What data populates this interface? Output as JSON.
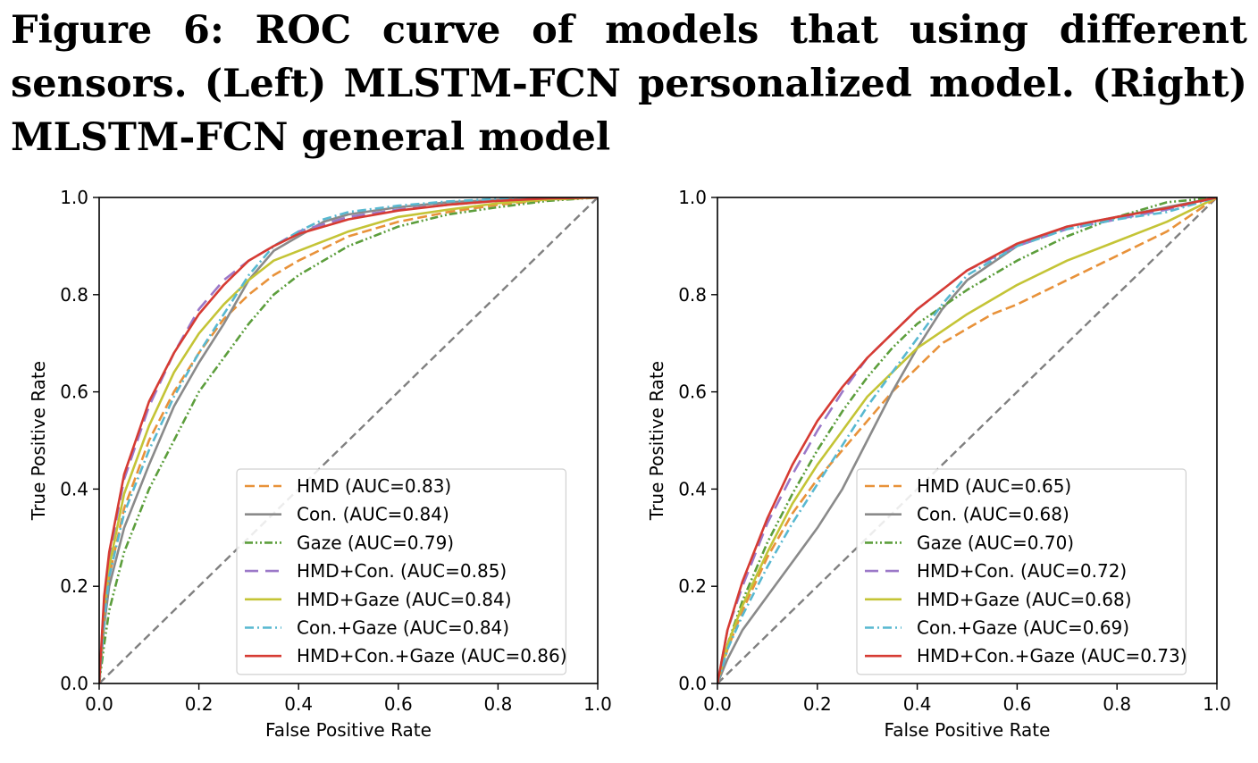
{
  "caption": "Figure 6: ROC curve of models that using different sensors. (Left) MLSTM-FCN personalized model. (Right) MLSTM-FCN general model",
  "chart_data": [
    {
      "type": "line",
      "panel": "left",
      "xlabel": "False Positive Rate",
      "ylabel": "True Positive Rate",
      "xlim": [
        0,
        1
      ],
      "ylim": [
        0,
        1
      ],
      "xticks": [
        "0.0",
        "0.2",
        "0.4",
        "0.6",
        "0.8",
        "1.0"
      ],
      "yticks": [
        "0.0",
        "0.2",
        "0.4",
        "0.6",
        "0.8",
        "1.0"
      ],
      "grid": false,
      "legend_position": "lower-right",
      "diagonal": true,
      "series": [
        {
          "name": "HMD (AUC=0.83)",
          "color": "#e8923a",
          "dash": "dash",
          "x": [
            0,
            0.01,
            0.02,
            0.05,
            0.1,
            0.15,
            0.2,
            0.25,
            0.3,
            0.35,
            0.4,
            0.5,
            0.6,
            0.7,
            0.8,
            0.9,
            1.0
          ],
          "y": [
            0,
            0.14,
            0.22,
            0.36,
            0.5,
            0.6,
            0.68,
            0.75,
            0.8,
            0.84,
            0.87,
            0.92,
            0.95,
            0.97,
            0.985,
            0.995,
            1.0
          ]
        },
        {
          "name": "Con. (AUC=0.84)",
          "color": "#8a8a8a",
          "dash": "solid",
          "x": [
            0,
            0.01,
            0.02,
            0.05,
            0.1,
            0.15,
            0.2,
            0.25,
            0.3,
            0.35,
            0.4,
            0.45,
            0.5,
            0.6,
            0.7,
            0.8,
            0.9,
            1.0
          ],
          "y": [
            0,
            0.12,
            0.2,
            0.32,
            0.45,
            0.57,
            0.66,
            0.74,
            0.83,
            0.89,
            0.92,
            0.95,
            0.965,
            0.98,
            0.99,
            0.995,
            0.998,
            1.0
          ]
        },
        {
          "name": "Gaze (AUC=0.79)",
          "color": "#5c9e3c",
          "dash": "dashdotdot",
          "x": [
            0,
            0.01,
            0.02,
            0.05,
            0.1,
            0.15,
            0.2,
            0.25,
            0.3,
            0.35,
            0.4,
            0.5,
            0.6,
            0.7,
            0.8,
            0.9,
            1.0
          ],
          "y": [
            0,
            0.08,
            0.15,
            0.27,
            0.4,
            0.5,
            0.6,
            0.67,
            0.74,
            0.8,
            0.84,
            0.9,
            0.94,
            0.965,
            0.98,
            0.993,
            1.0
          ]
        },
        {
          "name": "HMD+Con. (AUC=0.85)",
          "color": "#9b78c8",
          "dash": "longdash",
          "x": [
            0,
            0.01,
            0.02,
            0.05,
            0.1,
            0.15,
            0.2,
            0.25,
            0.3,
            0.35,
            0.4,
            0.5,
            0.6,
            0.7,
            0.8,
            0.9,
            1.0
          ],
          "y": [
            0,
            0.17,
            0.26,
            0.42,
            0.57,
            0.68,
            0.77,
            0.83,
            0.87,
            0.9,
            0.93,
            0.96,
            0.975,
            0.985,
            0.993,
            0.998,
            1.0
          ]
        },
        {
          "name": "HMD+Gaze (AUC=0.84)",
          "color": "#c4c436",
          "dash": "solid",
          "x": [
            0,
            0.01,
            0.02,
            0.05,
            0.1,
            0.15,
            0.2,
            0.25,
            0.3,
            0.35,
            0.4,
            0.5,
            0.6,
            0.7,
            0.8,
            0.9,
            1.0
          ],
          "y": [
            0,
            0.15,
            0.24,
            0.39,
            0.53,
            0.64,
            0.72,
            0.78,
            0.83,
            0.87,
            0.89,
            0.93,
            0.96,
            0.975,
            0.988,
            0.996,
            1.0
          ]
        },
        {
          "name": "Con.+Gaze (AUC=0.84)",
          "color": "#58b8d0",
          "dash": "dashdot",
          "x": [
            0,
            0.01,
            0.02,
            0.05,
            0.1,
            0.15,
            0.2,
            0.25,
            0.3,
            0.35,
            0.4,
            0.45,
            0.5,
            0.6,
            0.7,
            0.8,
            0.9,
            1.0
          ],
          "y": [
            0,
            0.13,
            0.22,
            0.35,
            0.48,
            0.59,
            0.68,
            0.76,
            0.84,
            0.9,
            0.93,
            0.955,
            0.97,
            0.983,
            0.992,
            0.997,
            0.999,
            1.0
          ]
        },
        {
          "name": "HMD+Con.+Gaze (AUC=0.86)",
          "color": "#d63b33",
          "dash": "solid",
          "x": [
            0,
            0.01,
            0.02,
            0.05,
            0.1,
            0.15,
            0.2,
            0.25,
            0.3,
            0.35,
            0.4,
            0.5,
            0.6,
            0.7,
            0.8,
            0.9,
            1.0
          ],
          "y": [
            0,
            0.18,
            0.27,
            0.43,
            0.58,
            0.68,
            0.76,
            0.82,
            0.87,
            0.9,
            0.925,
            0.955,
            0.973,
            0.985,
            0.993,
            0.998,
            1.0
          ]
        }
      ]
    },
    {
      "type": "line",
      "panel": "right",
      "xlabel": "False Positive Rate",
      "ylabel": "True Positive Rate",
      "xlim": [
        0,
        1
      ],
      "ylim": [
        0,
        1
      ],
      "xticks": [
        "0.0",
        "0.2",
        "0.4",
        "0.6",
        "0.8",
        "1.0"
      ],
      "yticks": [
        "0.0",
        "0.2",
        "0.4",
        "0.6",
        "0.8",
        "1.0"
      ],
      "grid": false,
      "legend_position": "lower-right",
      "diagonal": true,
      "series": [
        {
          "name": "HMD (AUC=0.65)",
          "color": "#e8923a",
          "dash": "dash",
          "x": [
            0,
            0.02,
            0.05,
            0.1,
            0.15,
            0.2,
            0.25,
            0.3,
            0.35,
            0.4,
            0.45,
            0.5,
            0.55,
            0.6,
            0.7,
            0.8,
            0.9,
            1.0
          ],
          "y": [
            0,
            0.07,
            0.15,
            0.26,
            0.35,
            0.42,
            0.48,
            0.54,
            0.6,
            0.65,
            0.7,
            0.73,
            0.76,
            0.78,
            0.83,
            0.88,
            0.93,
            1.0
          ]
        },
        {
          "name": "Con. (AUC=0.68)",
          "color": "#8a8a8a",
          "dash": "solid",
          "x": [
            0,
            0.02,
            0.05,
            0.1,
            0.15,
            0.2,
            0.25,
            0.3,
            0.35,
            0.4,
            0.45,
            0.5,
            0.6,
            0.7,
            0.8,
            0.9,
            1.0
          ],
          "y": [
            0,
            0.05,
            0.11,
            0.18,
            0.25,
            0.32,
            0.4,
            0.5,
            0.6,
            0.69,
            0.77,
            0.83,
            0.9,
            0.94,
            0.96,
            0.98,
            1.0
          ]
        },
        {
          "name": "Gaze (AUC=0.70)",
          "color": "#5c9e3c",
          "dash": "dashdotdot",
          "x": [
            0,
            0.02,
            0.05,
            0.1,
            0.15,
            0.2,
            0.25,
            0.3,
            0.35,
            0.4,
            0.5,
            0.6,
            0.7,
            0.8,
            0.9,
            1.0
          ],
          "y": [
            0,
            0.08,
            0.17,
            0.29,
            0.39,
            0.48,
            0.56,
            0.63,
            0.69,
            0.74,
            0.81,
            0.87,
            0.92,
            0.96,
            0.99,
            1.0
          ]
        },
        {
          "name": "HMD+Con. (AUC=0.72)",
          "color": "#9b78c8",
          "dash": "longdash",
          "x": [
            0,
            0.02,
            0.05,
            0.1,
            0.15,
            0.2,
            0.25,
            0.3,
            0.35,
            0.4,
            0.5,
            0.6,
            0.7,
            0.8,
            0.9,
            1.0
          ],
          "y": [
            0,
            0.11,
            0.2,
            0.33,
            0.43,
            0.52,
            0.6,
            0.67,
            0.72,
            0.77,
            0.85,
            0.9,
            0.935,
            0.955,
            0.975,
            1.0
          ]
        },
        {
          "name": "HMD+Gaze (AUC=0.68)",
          "color": "#c4c436",
          "dash": "solid",
          "x": [
            0,
            0.02,
            0.05,
            0.1,
            0.15,
            0.2,
            0.25,
            0.3,
            0.35,
            0.4,
            0.5,
            0.6,
            0.7,
            0.8,
            0.9,
            1.0
          ],
          "y": [
            0,
            0.08,
            0.16,
            0.27,
            0.37,
            0.45,
            0.52,
            0.59,
            0.64,
            0.69,
            0.76,
            0.82,
            0.87,
            0.91,
            0.95,
            1.0
          ]
        },
        {
          "name": "Con.+Gaze (AUC=0.69)",
          "color": "#58b8d0",
          "dash": "dashdot",
          "x": [
            0,
            0.02,
            0.05,
            0.1,
            0.15,
            0.2,
            0.25,
            0.3,
            0.35,
            0.4,
            0.45,
            0.5,
            0.6,
            0.7,
            0.8,
            0.9,
            1.0
          ],
          "y": [
            0,
            0.07,
            0.14,
            0.24,
            0.33,
            0.41,
            0.49,
            0.57,
            0.64,
            0.71,
            0.78,
            0.84,
            0.9,
            0.935,
            0.955,
            0.97,
            1.0
          ]
        },
        {
          "name": "HMD+Con.+Gaze (AUC=0.73)",
          "color": "#d63b33",
          "dash": "solid",
          "x": [
            0,
            0.02,
            0.05,
            0.1,
            0.15,
            0.2,
            0.25,
            0.3,
            0.35,
            0.4,
            0.5,
            0.6,
            0.7,
            0.8,
            0.9,
            1.0
          ],
          "y": [
            0,
            0.11,
            0.21,
            0.34,
            0.45,
            0.54,
            0.61,
            0.67,
            0.72,
            0.77,
            0.85,
            0.905,
            0.94,
            0.96,
            0.978,
            1.0
          ]
        }
      ]
    }
  ]
}
